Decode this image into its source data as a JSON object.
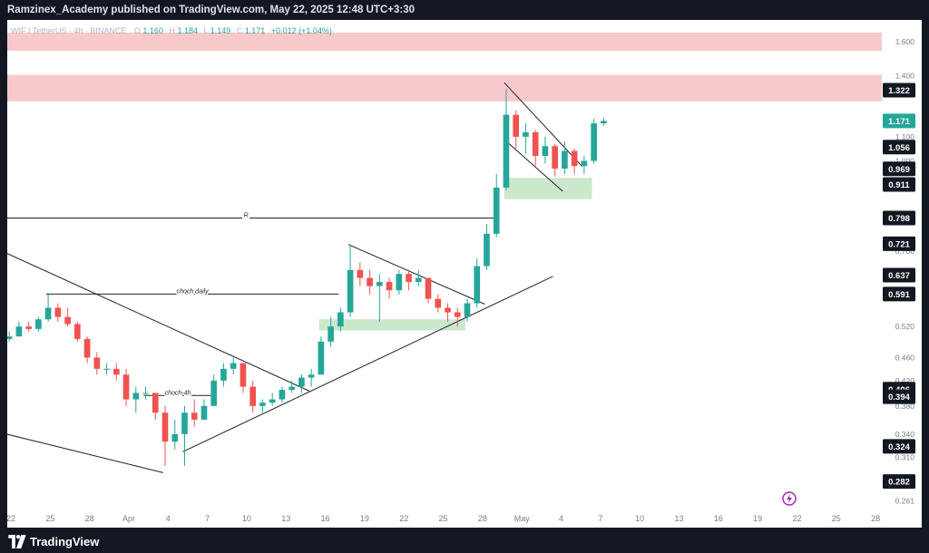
{
  "header": {
    "published_text": "Ramzinex_Academy published on TradingView.com, May 22, 2025 12:48 UTC+3:30"
  },
  "footer": {
    "brand": "TradingView"
  },
  "legend": {
    "symbol": "WIF / TetherUS · 4h · BINANCE",
    "o_label": "O",
    "o_value": "1.160",
    "h_label": "H",
    "h_value": "1.184",
    "l_label": "L",
    "l_value": "1.149",
    "c_label": "C",
    "c_value": "1.171",
    "change": "+0.012 (+1.04%)"
  },
  "colors": {
    "up": "#26a69a",
    "down": "#ef5350",
    "supply_zone": "#f8c9cb",
    "demand_zone": "#cbe8cd",
    "last_price": "#26a69a"
  },
  "chart_data": {
    "type": "candlestick",
    "scale": "log",
    "grid": false,
    "ylim": [
      0.248,
      1.72
    ],
    "x_tick_labels": [
      "22",
      "25",
      "28",
      "Apr",
      "4",
      "7",
      "10",
      "13",
      "16",
      "19",
      "22",
      "25",
      "28",
      "May",
      "4",
      "7",
      "10",
      "13",
      "16",
      "19",
      "22",
      "25",
      "28"
    ],
    "y_tick_labels": [
      "1.600",
      "1.400",
      "1.100",
      "1.000",
      "0.700",
      "0.520",
      "0.460",
      "0.420",
      "0.380",
      "0.340",
      "0.310",
      "0.261"
    ],
    "price_labels": [
      {
        "text": "1.322",
        "value": 1.322,
        "highlight": false
      },
      {
        "text": "1.171",
        "value": 1.171,
        "highlight": true
      },
      {
        "text": "1.056",
        "value": 1.056,
        "highlight": false
      },
      {
        "text": "0.969",
        "value": 0.969,
        "highlight": false
      },
      {
        "text": "0.911",
        "value": 0.911,
        "highlight": false
      },
      {
        "text": "0.798",
        "value": 0.798,
        "highlight": false
      },
      {
        "text": "0.721",
        "value": 0.721,
        "highlight": false
      },
      {
        "text": "0.637",
        "value": 0.637,
        "highlight": false
      },
      {
        "text": "0.591",
        "value": 0.591,
        "highlight": false
      },
      {
        "text": "0.406",
        "value": 0.406,
        "highlight": false
      },
      {
        "text": "0.394",
        "value": 0.394,
        "highlight": false
      },
      {
        "text": "0.324",
        "value": 0.324,
        "highlight": false
      },
      {
        "text": "0.282",
        "value": 0.282,
        "highlight": false
      }
    ],
    "zones": [
      {
        "kind": "supply",
        "from": "Mar 21",
        "to": "end",
        "y_low": 1.545,
        "y_high": 1.66
      },
      {
        "kind": "supply",
        "from": "Mar 21",
        "to": "end",
        "y_low": 1.265,
        "y_high": 1.405
      },
      {
        "kind": "demand",
        "from": "May 12",
        "to": "May 21",
        "y_low": 0.86,
        "y_high": 0.935
      },
      {
        "kind": "demand",
        "from": "Apr 23",
        "to": "May 8",
        "y_low": 0.512,
        "y_high": 0.535
      }
    ],
    "annotations": [
      {
        "text": "R",
        "type": "horizontal",
        "value": 0.798,
        "from": "Mar 21",
        "to": "May 11"
      },
      {
        "text": "choch daily",
        "type": "horizontal",
        "value": 0.591,
        "from": "Mar 26",
        "to": "Apr 25"
      },
      {
        "text": "choch-4h",
        "type": "horizontal",
        "value": 0.396,
        "from": "Apr 5",
        "to": "Apr 12"
      }
    ],
    "trendlines": [
      {
        "from": [
          "Mar 21",
          0.706
        ],
        "to": [
          "Apr 22",
          0.403
        ]
      },
      {
        "from": [
          "Mar 21",
          0.343
        ],
        "to": [
          "Apr 7",
          0.292
        ]
      },
      {
        "from": [
          "Apr 9",
          0.317
        ],
        "to": [
          "May 17",
          0.634
        ]
      },
      {
        "from": [
          "Apr 26",
          0.719
        ],
        "to": [
          "May 10",
          0.568
        ]
      },
      {
        "from": [
          "May 12",
          1.362
        ],
        "to": [
          "May 20",
          0.978
        ]
      },
      {
        "from": [
          "May 12",
          1.088
        ],
        "to": [
          "May 18",
          0.887
        ]
      }
    ],
    "series": [
      {
        "values": [
          {
            "d": "Mar 21",
            "o": 0.49,
            "h": 0.5,
            "l": 0.48,
            "c": 0.495
          },
          {
            "d": "Mar 22",
            "o": 0.495,
            "h": 0.51,
            "l": 0.49,
            "c": 0.5
          },
          {
            "d": "Mar 23",
            "o": 0.5,
            "h": 0.53,
            "l": 0.5,
            "c": 0.52
          },
          {
            "d": "Mar 24",
            "o": 0.52,
            "h": 0.53,
            "l": 0.51,
            "c": 0.515
          },
          {
            "d": "Mar 25",
            "o": 0.515,
            "h": 0.54,
            "l": 0.51,
            "c": 0.535
          },
          {
            "d": "Mar 26",
            "o": 0.535,
            "h": 0.59,
            "l": 0.53,
            "c": 0.56
          },
          {
            "d": "Mar 27",
            "o": 0.56,
            "h": 0.57,
            "l": 0.53,
            "c": 0.54
          },
          {
            "d": "Mar 28",
            "o": 0.54,
            "h": 0.56,
            "l": 0.52,
            "c": 0.525
          },
          {
            "d": "Mar 29",
            "o": 0.525,
            "h": 0.53,
            "l": 0.49,
            "c": 0.495
          },
          {
            "d": "Mar 30",
            "o": 0.495,
            "h": 0.5,
            "l": 0.45,
            "c": 0.46
          },
          {
            "d": "Mar 31",
            "o": 0.46,
            "h": 0.47,
            "l": 0.43,
            "c": 0.44
          },
          {
            "d": "Apr 1",
            "o": 0.44,
            "h": 0.45,
            "l": 0.43,
            "c": 0.44
          },
          {
            "d": "Apr 2",
            "o": 0.44,
            "h": 0.45,
            "l": 0.42,
            "c": 0.43
          },
          {
            "d": "Apr 3",
            "o": 0.43,
            "h": 0.44,
            "l": 0.38,
            "c": 0.39
          },
          {
            "d": "Apr 4",
            "o": 0.39,
            "h": 0.41,
            "l": 0.37,
            "c": 0.4
          },
          {
            "d": "Apr 5",
            "o": 0.4,
            "h": 0.41,
            "l": 0.39,
            "c": 0.4
          },
          {
            "d": "Apr 6",
            "o": 0.4,
            "h": 0.4,
            "l": 0.36,
            "c": 0.37
          },
          {
            "d": "Apr 7",
            "o": 0.37,
            "h": 0.38,
            "l": 0.3,
            "c": 0.33
          },
          {
            "d": "Apr 8",
            "o": 0.33,
            "h": 0.36,
            "l": 0.32,
            "c": 0.34
          },
          {
            "d": "Apr 9",
            "o": 0.34,
            "h": 0.38,
            "l": 0.3,
            "c": 0.37
          },
          {
            "d": "Apr 10",
            "o": 0.37,
            "h": 0.39,
            "l": 0.35,
            "c": 0.36
          },
          {
            "d": "Apr 11",
            "o": 0.36,
            "h": 0.39,
            "l": 0.36,
            "c": 0.38
          },
          {
            "d": "Apr 12",
            "o": 0.38,
            "h": 0.43,
            "l": 0.38,
            "c": 0.42
          },
          {
            "d": "Apr 13",
            "o": 0.42,
            "h": 0.45,
            "l": 0.41,
            "c": 0.44
          },
          {
            "d": "Apr 14",
            "o": 0.44,
            "h": 0.46,
            "l": 0.43,
            "c": 0.45
          },
          {
            "d": "Apr 15",
            "o": 0.45,
            "h": 0.45,
            "l": 0.4,
            "c": 0.41
          },
          {
            "d": "Apr 16",
            "o": 0.41,
            "h": 0.42,
            "l": 0.37,
            "c": 0.38
          },
          {
            "d": "Apr 17",
            "o": 0.38,
            "h": 0.39,
            "l": 0.37,
            "c": 0.385
          },
          {
            "d": "Apr 18",
            "o": 0.385,
            "h": 0.4,
            "l": 0.38,
            "c": 0.39
          },
          {
            "d": "Apr 19",
            "o": 0.39,
            "h": 0.41,
            "l": 0.385,
            "c": 0.405
          },
          {
            "d": "Apr 20",
            "o": 0.405,
            "h": 0.42,
            "l": 0.4,
            "c": 0.41
          },
          {
            "d": "Apr 21",
            "o": 0.41,
            "h": 0.43,
            "l": 0.4,
            "c": 0.425
          },
          {
            "d": "Apr 22",
            "o": 0.425,
            "h": 0.44,
            "l": 0.41,
            "c": 0.43
          },
          {
            "d": "Apr 23",
            "o": 0.43,
            "h": 0.5,
            "l": 0.43,
            "c": 0.49
          },
          {
            "d": "Apr 24",
            "o": 0.49,
            "h": 0.54,
            "l": 0.48,
            "c": 0.52
          },
          {
            "d": "Apr 25",
            "o": 0.52,
            "h": 0.56,
            "l": 0.51,
            "c": 0.55
          },
          {
            "d": "Apr 26",
            "o": 0.55,
            "h": 0.72,
            "l": 0.54,
            "c": 0.65
          },
          {
            "d": "Apr 27",
            "o": 0.65,
            "h": 0.67,
            "l": 0.61,
            "c": 0.63
          },
          {
            "d": "Apr 28",
            "o": 0.63,
            "h": 0.65,
            "l": 0.59,
            "c": 0.61
          },
          {
            "d": "Apr 29",
            "o": 0.61,
            "h": 0.64,
            "l": 0.53,
            "c": 0.62
          },
          {
            "d": "Apr 30",
            "o": 0.62,
            "h": 0.63,
            "l": 0.58,
            "c": 0.6
          },
          {
            "d": "May 1",
            "o": 0.6,
            "h": 0.65,
            "l": 0.59,
            "c": 0.64
          },
          {
            "d": "May 2",
            "o": 0.64,
            "h": 0.65,
            "l": 0.6,
            "c": 0.62
          },
          {
            "d": "May 3",
            "o": 0.62,
            "h": 0.65,
            "l": 0.61,
            "c": 0.63
          },
          {
            "d": "May 4",
            "o": 0.63,
            "h": 0.63,
            "l": 0.57,
            "c": 0.58
          },
          {
            "d": "May 5",
            "o": 0.58,
            "h": 0.59,
            "l": 0.55,
            "c": 0.56
          },
          {
            "d": "May 6",
            "o": 0.56,
            "h": 0.57,
            "l": 0.53,
            "c": 0.55
          },
          {
            "d": "May 7",
            "o": 0.55,
            "h": 0.56,
            "l": 0.52,
            "c": 0.54
          },
          {
            "d": "May 8",
            "o": 0.54,
            "h": 0.58,
            "l": 0.53,
            "c": 0.57
          },
          {
            "d": "May 9",
            "o": 0.57,
            "h": 0.68,
            "l": 0.56,
            "c": 0.66
          },
          {
            "d": "May 10",
            "o": 0.66,
            "h": 0.78,
            "l": 0.65,
            "c": 0.75
          },
          {
            "d": "May 11",
            "o": 0.75,
            "h": 0.95,
            "l": 0.74,
            "c": 0.9
          },
          {
            "d": "May 12",
            "o": 0.9,
            "h": 1.33,
            "l": 0.89,
            "c": 1.2
          },
          {
            "d": "May 13",
            "o": 1.2,
            "h": 1.22,
            "l": 1.05,
            "c": 1.1
          },
          {
            "d": "May 14",
            "o": 1.1,
            "h": 1.16,
            "l": 1.03,
            "c": 1.12
          },
          {
            "d": "May 15",
            "o": 1.12,
            "h": 1.13,
            "l": 0.98,
            "c": 1.02
          },
          {
            "d": "May 16",
            "o": 1.02,
            "h": 1.1,
            "l": 0.99,
            "c": 1.06
          },
          {
            "d": "May 17",
            "o": 1.06,
            "h": 1.07,
            "l": 0.94,
            "c": 0.97
          },
          {
            "d": "May 18",
            "o": 0.97,
            "h": 1.08,
            "l": 0.95,
            "c": 1.04
          },
          {
            "d": "May 19",
            "o": 1.04,
            "h": 1.05,
            "l": 0.95,
            "c": 0.98
          },
          {
            "d": "May 20",
            "o": 0.98,
            "h": 1.02,
            "l": 0.95,
            "c": 1.0
          },
          {
            "d": "May 21",
            "o": 1.0,
            "h": 1.18,
            "l": 0.99,
            "c": 1.16
          },
          {
            "d": "May 22",
            "o": 1.16,
            "h": 1.184,
            "l": 1.149,
            "c": 1.171
          }
        ]
      }
    ]
  }
}
